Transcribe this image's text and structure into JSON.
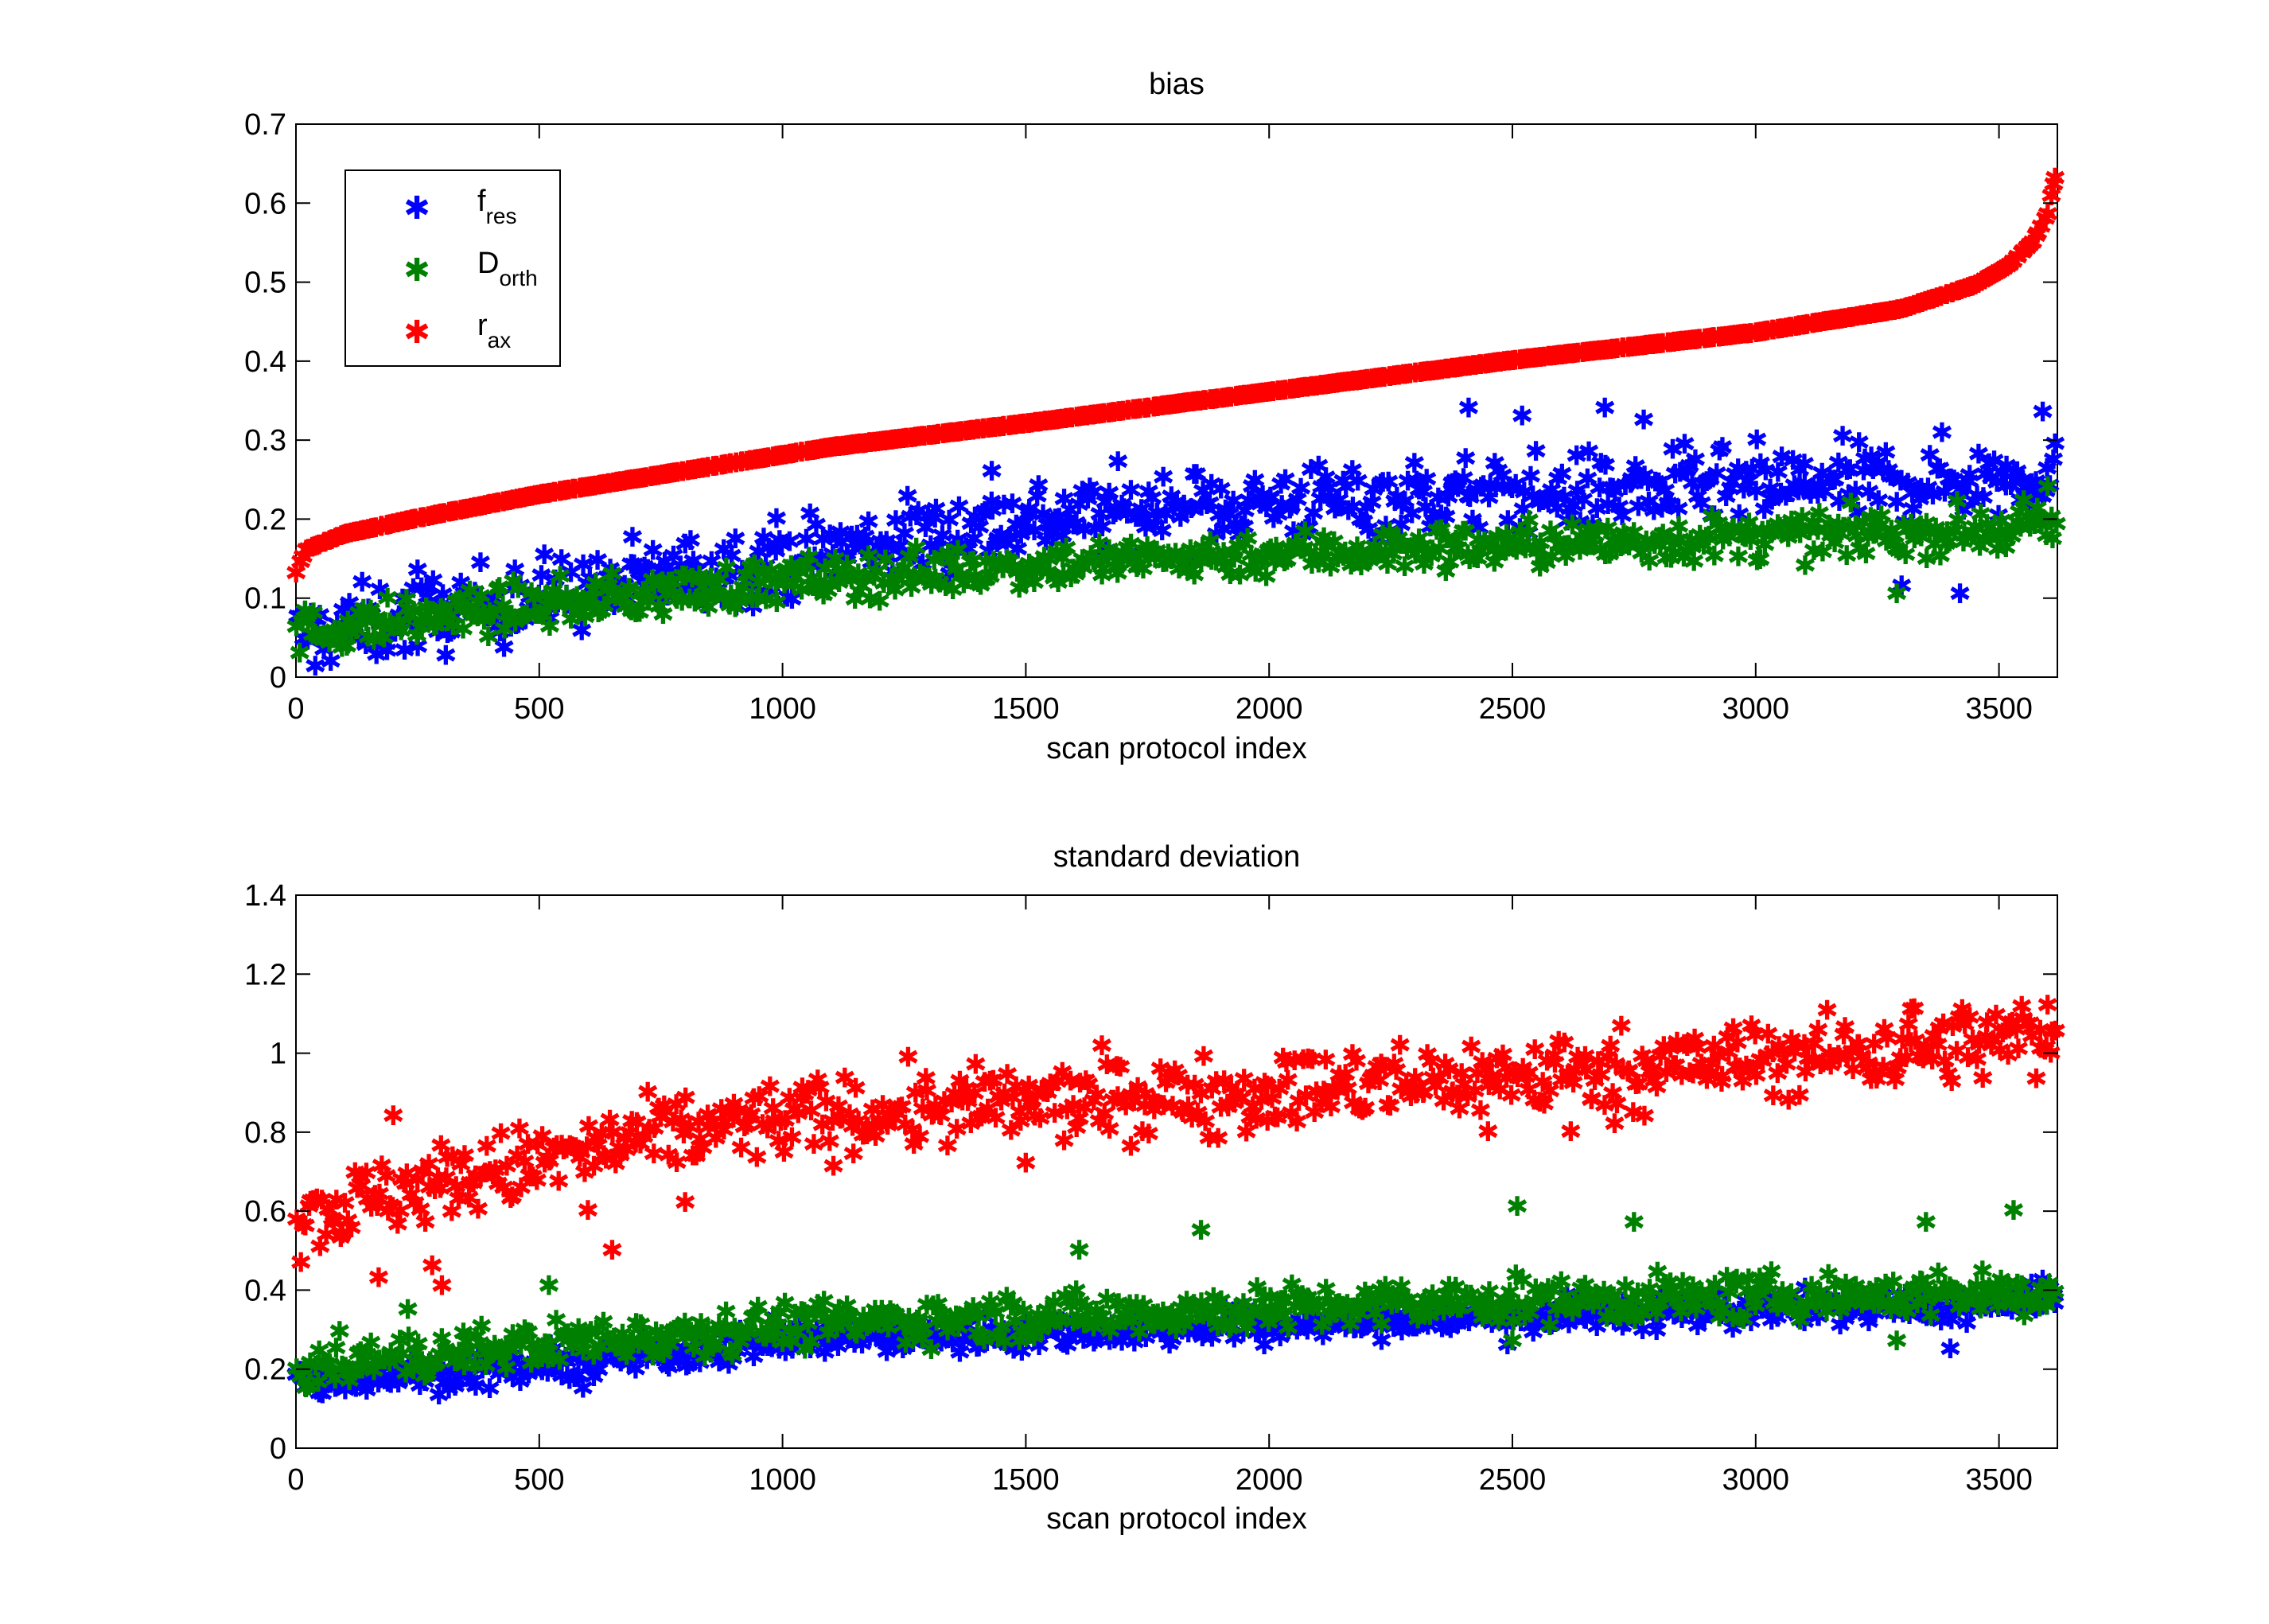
{
  "chart_data": [
    {
      "type": "scatter",
      "title": "bias",
      "xlabel": "scan protocol index",
      "ylabel": "",
      "xlim": [
        0,
        3620
      ],
      "ylim": [
        0,
        0.7
      ],
      "xticks": [
        "0",
        "500",
        "1000",
        "1500",
        "2000",
        "2500",
        "3000",
        "3500"
      ],
      "yticks": [
        "0",
        "0.1",
        "0.2",
        "0.3",
        "0.4",
        "0.5",
        "0.6",
        "0.7"
      ],
      "grid": false,
      "legend": {
        "placement": "top-left",
        "entries": [
          {
            "base": "f",
            "sub": "res",
            "color": "#0000ff"
          },
          {
            "base": "D",
            "sub": "orth",
            "color": "#008000"
          },
          {
            "base": "r",
            "sub": "ax",
            "color": "#ff0000"
          }
        ]
      },
      "marker": "*",
      "series": [
        {
          "name": "f_res",
          "color": "#0000ff",
          "trend_x": [
            0,
            500,
            1000,
            1500,
            2000,
            2500,
            3000,
            3500,
            3620
          ],
          "trend_y": [
            0.05,
            0.1,
            0.15,
            0.2,
            0.22,
            0.23,
            0.24,
            0.25,
            0.26
          ],
          "spread": 0.035,
          "outliers": [
            [
              250,
              0.135
            ],
            [
              450,
              0.135
            ],
            [
              1430,
              0.26
            ],
            [
              2410,
              0.34
            ],
            [
              2520,
              0.33
            ],
            [
              2690,
              0.34
            ],
            [
              2770,
              0.325
            ],
            [
              3300,
              0.115
            ],
            [
              3420,
              0.105
            ],
            [
              3590,
              0.335
            ]
          ]
        },
        {
          "name": "D_orth",
          "color": "#008000",
          "trend_x": [
            0,
            500,
            1000,
            1500,
            2000,
            2500,
            3000,
            3500,
            3620
          ],
          "trend_y": [
            0.055,
            0.09,
            0.12,
            0.14,
            0.155,
            0.165,
            0.175,
            0.185,
            0.19
          ],
          "spread": 0.02,
          "outliers": [
            [
              3290,
              0.105
            ],
            [
              3600,
              0.24
            ]
          ]
        },
        {
          "name": "r_ax",
          "color": "#ff0000",
          "trend_x": [
            0,
            20,
            100,
            250,
            500,
            800,
            1100,
            1500,
            2000,
            2500,
            3000,
            3300,
            3450,
            3520,
            3570,
            3600,
            3620
          ],
          "trend_y": [
            0.13,
            0.16,
            0.18,
            0.2,
            0.23,
            0.26,
            0.29,
            0.32,
            0.36,
            0.4,
            0.435,
            0.465,
            0.495,
            0.52,
            0.55,
            0.585,
            0.645
          ],
          "spread": 0.0
        }
      ]
    },
    {
      "type": "scatter",
      "title": "standard deviation",
      "xlabel": "scan protocol index",
      "ylabel": "",
      "xlim": [
        0,
        3620
      ],
      "ylim": [
        0,
        1.4
      ],
      "xticks": [
        "0",
        "500",
        "1000",
        "1500",
        "2000",
        "2500",
        "3000",
        "3500"
      ],
      "yticks": [
        "0",
        "0.2",
        "0.4",
        "0.6",
        "0.8",
        "1",
        "1.2",
        "1.4"
      ],
      "grid": false,
      "marker": "*",
      "series": [
        {
          "name": "r_ax",
          "color": "#ff0000",
          "trend_x": [
            0,
            250,
            500,
            800,
            1000,
            1500,
            2000,
            2500,
            3000,
            3500,
            3620
          ],
          "trend_y": [
            0.58,
            0.66,
            0.72,
            0.8,
            0.83,
            0.87,
            0.9,
            0.94,
            0.98,
            1.03,
            1.05
          ],
          "spread": 0.07,
          "outliers": [
            [
              200,
              0.84
            ],
            [
              170,
              0.43
            ],
            [
              280,
              0.46
            ],
            [
              300,
              0.41
            ],
            [
              600,
              0.6
            ],
            [
              650,
              0.5
            ],
            [
              800,
              0.62
            ],
            [
              1500,
              0.72
            ],
            [
              2450,
              0.8
            ],
            [
              2620,
              0.8
            ],
            [
              2710,
              0.82
            ],
            [
              3320,
              1.11
            ],
            [
              3600,
              1.12
            ]
          ]
        },
        {
          "name": "f_res",
          "color": "#0000ff",
          "trend_x": [
            0,
            500,
            1000,
            1500,
            2000,
            2500,
            3000,
            3500,
            3620
          ],
          "trend_y": [
            0.17,
            0.2,
            0.27,
            0.29,
            0.31,
            0.33,
            0.35,
            0.36,
            0.37
          ],
          "spread": 0.03,
          "outliers": [
            [
              590,
              0.15
            ],
            [
              1990,
              0.26
            ],
            [
              2490,
              0.26
            ],
            [
              3400,
              0.25
            ]
          ]
        },
        {
          "name": "D_orth",
          "color": "#008000",
          "trend_x": [
            0,
            500,
            1000,
            1500,
            2000,
            2500,
            3000,
            3500,
            3620
          ],
          "trend_y": [
            0.2,
            0.26,
            0.31,
            0.33,
            0.35,
            0.37,
            0.38,
            0.39,
            0.39
          ],
          "spread": 0.04,
          "outliers": [
            [
              230,
              0.35
            ],
            [
              520,
              0.41
            ],
            [
              1610,
              0.5
            ],
            [
              1860,
              0.55
            ],
            [
              2510,
              0.61
            ],
            [
              2750,
              0.57
            ],
            [
              3350,
              0.57
            ],
            [
              3530,
              0.6
            ],
            [
              3290,
              0.27
            ],
            [
              2500,
              0.27
            ]
          ]
        }
      ]
    }
  ]
}
